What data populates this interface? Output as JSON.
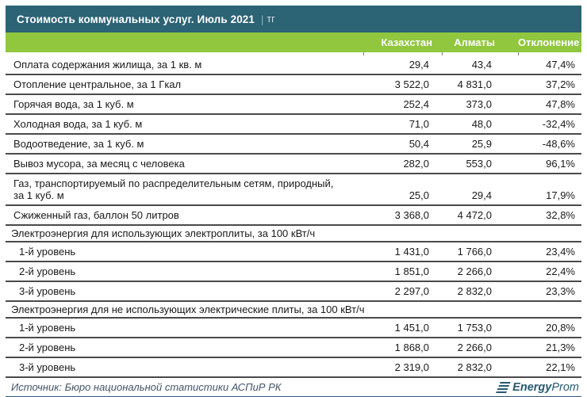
{
  "title": {
    "main": "Стоимость коммунальных услуг. Июль 2021",
    "separator": "|",
    "unit": "тг"
  },
  "chart_data": {
    "type": "table",
    "title": "Стоимость коммунальных услуг. Июль 2021 | тг",
    "columns": [
      "",
      "Казахстан",
      "Алматы",
      "Отклонение"
    ],
    "rows": [
      {
        "kind": "item",
        "label": "Оплата содержания жилища, за 1 кв. м",
        "values": [
          "29,4",
          "43,4",
          "47,4%"
        ]
      },
      {
        "kind": "item",
        "label": "Отопление центральное, за 1 Гкал",
        "values": [
          "3 522,0",
          "4 831,0",
          "37,2%"
        ]
      },
      {
        "kind": "item",
        "label": "Горячая вода, за 1 куб. м",
        "values": [
          "252,4",
          "373,0",
          "47,8%"
        ]
      },
      {
        "kind": "item",
        "label": "Холодная вода, за 1 куб. м",
        "values": [
          "71,0",
          "48,0",
          "-32,4%"
        ]
      },
      {
        "kind": "item",
        "label": "Водоотведение, за 1 куб. м",
        "values": [
          "50,4",
          "25,9",
          "-48,6%"
        ]
      },
      {
        "kind": "item",
        "label": "Вывоз мусора, за месяц с человека",
        "values": [
          "282,0",
          "553,0",
          "96,1%"
        ]
      },
      {
        "kind": "item",
        "label": "Газ, транспортируемый по распределительным сетям, природный, за 1 куб. м",
        "label_lines": [
          "Газ, транспортируемый по распределительным сетям, природный,",
          "за 1 куб. м"
        ],
        "values": [
          "25,0",
          "29,4",
          "17,9%"
        ]
      },
      {
        "kind": "item",
        "label": "Сжиженный газ, баллон 50 литров",
        "values": [
          "3 368,0",
          "4 472,0",
          "32,8%"
        ]
      },
      {
        "kind": "section",
        "label": "Электроэнергия для использующих электроплиты, за 100 кВт/ч"
      },
      {
        "kind": "item",
        "indent": true,
        "label": "1-й уровень",
        "values": [
          "1 431,0",
          "1 766,0",
          "23,4%"
        ]
      },
      {
        "kind": "item",
        "indent": true,
        "label": "2-й уровень",
        "values": [
          "1 851,0",
          "2 266,0",
          "22,4%"
        ]
      },
      {
        "kind": "item",
        "indent": true,
        "label": "3-й уровень",
        "values": [
          "2 297,0",
          "2 832,0",
          "23,3%"
        ]
      },
      {
        "kind": "section",
        "label": "Электроэнергия для не использующих электрические плиты, за 100 кВт/ч"
      },
      {
        "kind": "item",
        "indent": true,
        "label": "1-й уровень",
        "values": [
          "1 451,0",
          "1 753,0",
          "20,8%"
        ]
      },
      {
        "kind": "item",
        "indent": true,
        "label": "2-й уровень",
        "values": [
          "1 868,0",
          "2 266,0",
          "21,3%"
        ]
      },
      {
        "kind": "item",
        "indent": true,
        "label": "3-й уровень",
        "values": [
          "2 319,0",
          "2 832,0",
          "22,1%"
        ]
      }
    ]
  },
  "footer": {
    "source": "Источник: Бюро национальной статистики АСПиР РК",
    "logo_bold": "Energy",
    "logo_regular": "Prom"
  },
  "colors": {
    "title_bar": "#2C6375",
    "header_bar": "#90C73F",
    "row_line": "#4a4a4a",
    "text": "#1a1a1a",
    "source_text": "#44546A",
    "logo": "#265A70",
    "bottom_bar": "#2E5B7E"
  }
}
